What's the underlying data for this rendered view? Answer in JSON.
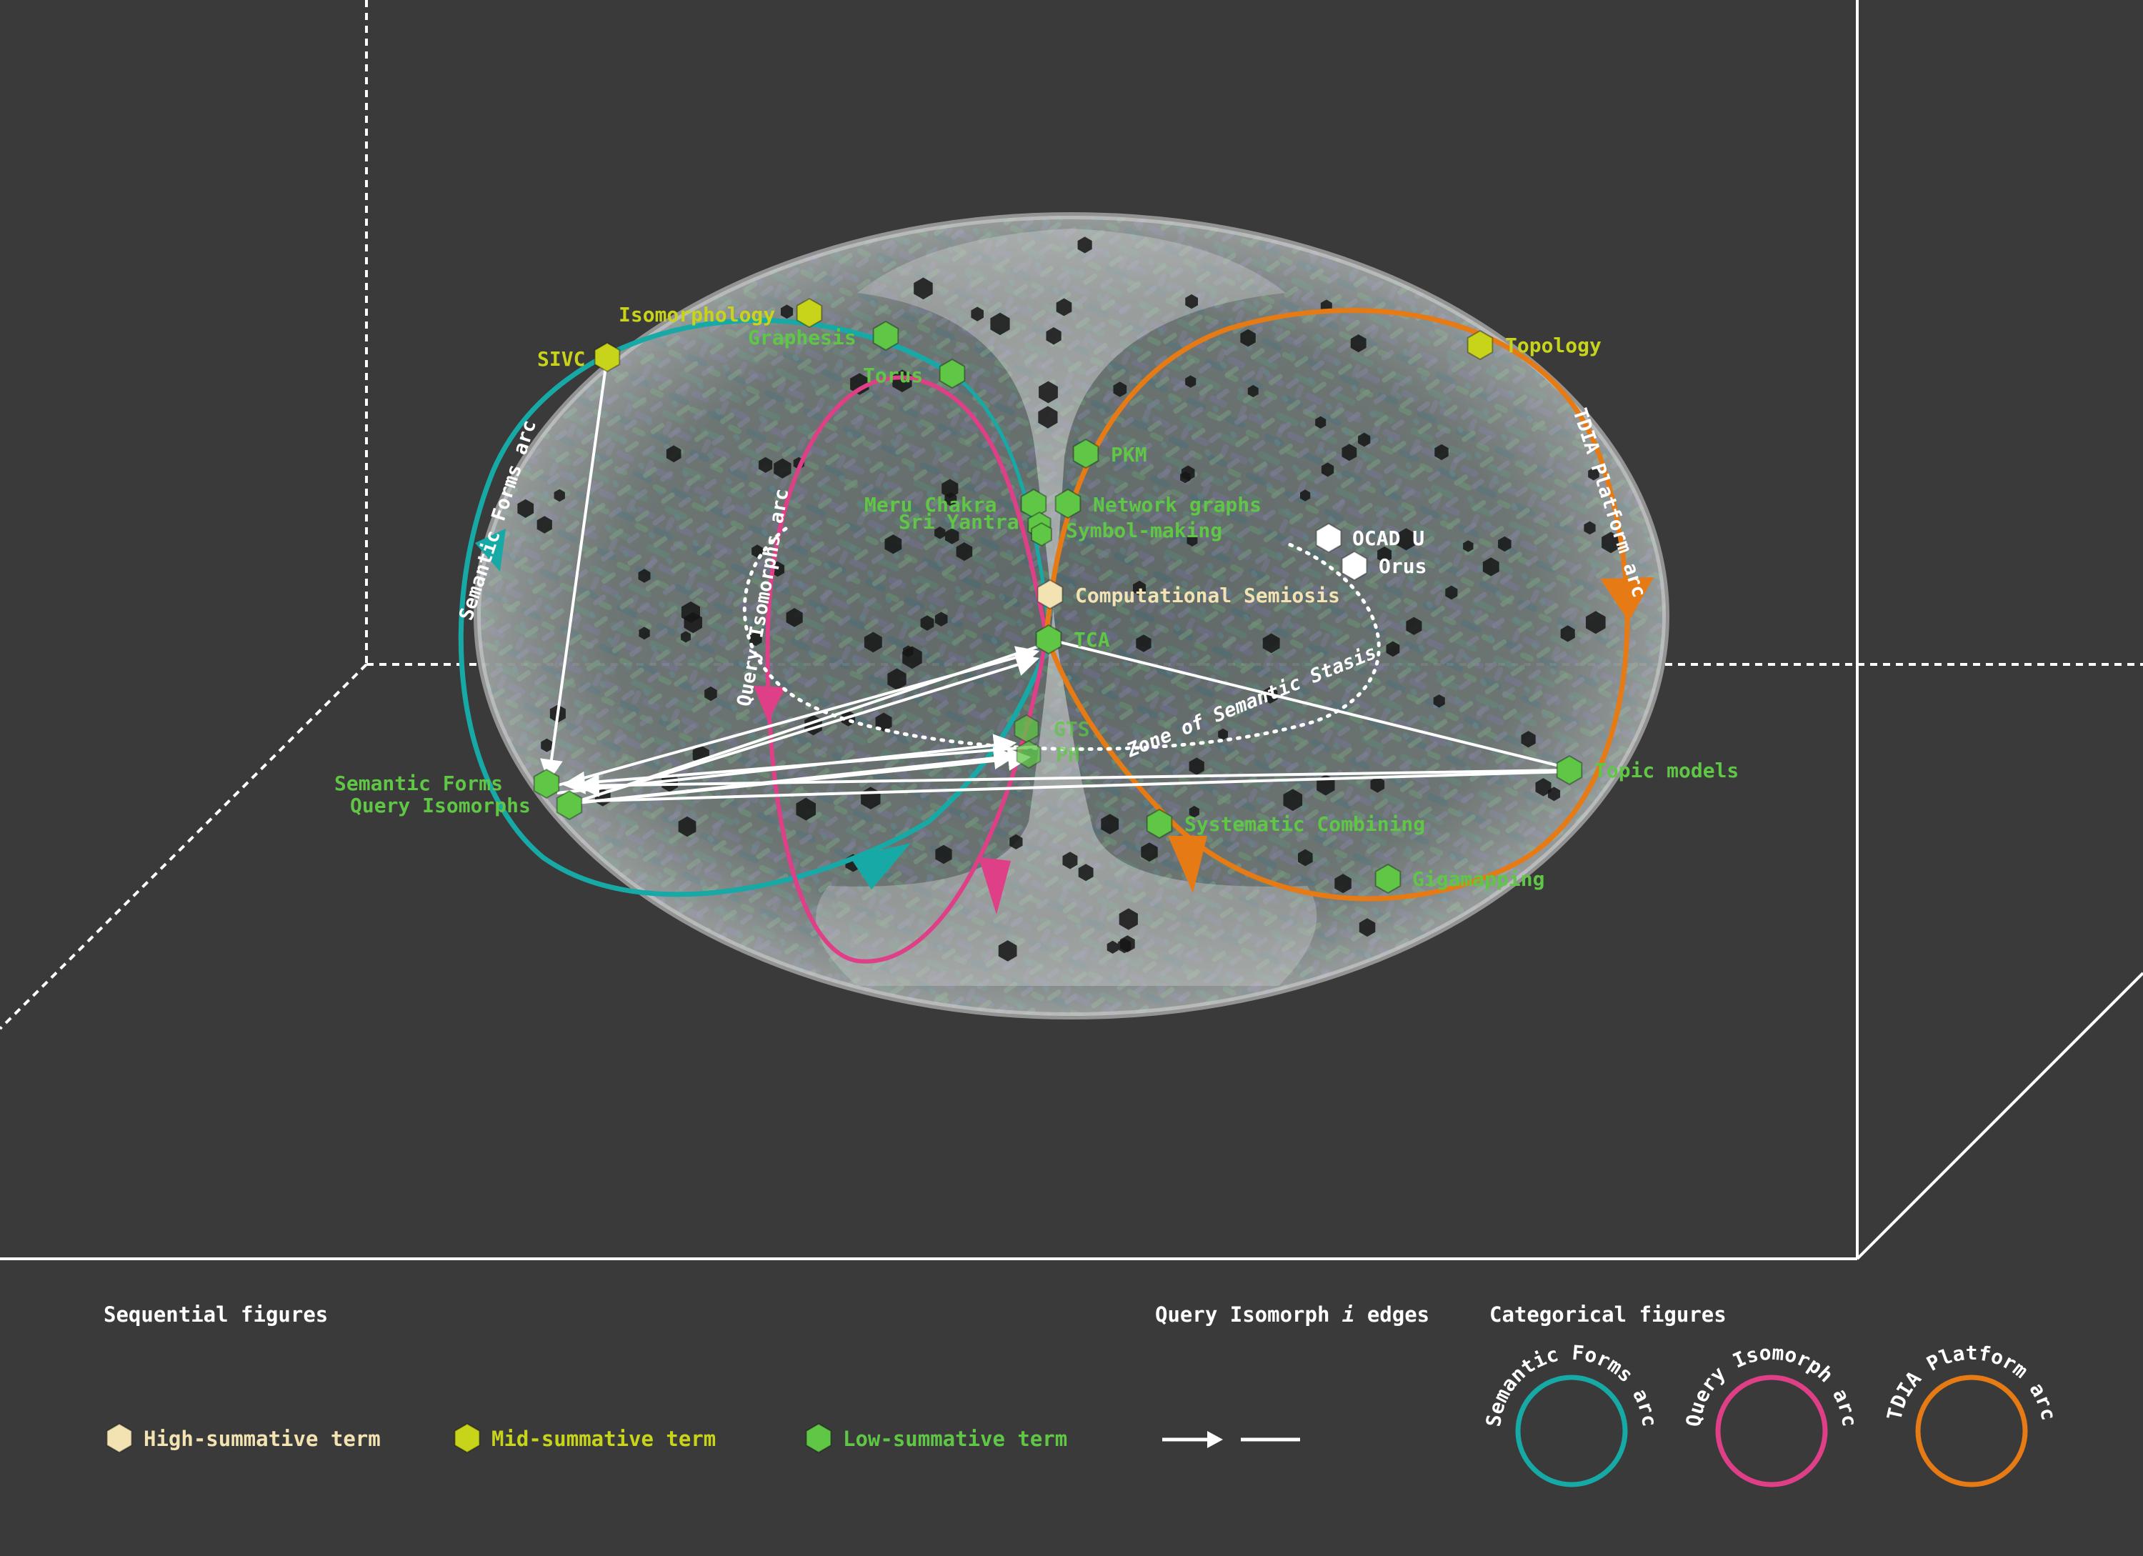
{
  "colors": {
    "background": "#3a3a3a",
    "high": "#f3e3b3",
    "mid": "#c8d41a",
    "low": "#5fc646",
    "white_node": "#ffffff",
    "semantic_forms_arc": "#16a9a6",
    "query_isomorphs_arc": "#df3f86",
    "tdia_platform_arc": "#e67a14"
  },
  "arc_labels": {
    "semantic_forms": "Semantic Forms arc",
    "query_isomorphs": "Query Isomorphs arc",
    "tdia_platform": "TDIA Platform arc",
    "zone": "Zone of Semantic Stasis"
  },
  "nodes": [
    {
      "id": "isomorphology",
      "label": "Isomorphology",
      "level": "mid"
    },
    {
      "id": "graphesis",
      "label": "Graphesis",
      "level": "low"
    },
    {
      "id": "sivc",
      "label": "SIVC",
      "level": "mid"
    },
    {
      "id": "torus",
      "label": "Torus",
      "level": "low"
    },
    {
      "id": "topology",
      "label": "Topology",
      "level": "mid"
    },
    {
      "id": "pkm",
      "label": "PKM",
      "level": "low"
    },
    {
      "id": "meru",
      "label": "Meru Chakra",
      "level": "low"
    },
    {
      "id": "sri",
      "label": "Sri Yantra",
      "level": "low"
    },
    {
      "id": "network",
      "label": "Network graphs",
      "level": "low"
    },
    {
      "id": "symbol",
      "label": "Symbol-making",
      "level": "low"
    },
    {
      "id": "ocad",
      "label": "OCAD U",
      "level": "white"
    },
    {
      "id": "orus",
      "label": "Orus",
      "level": "white"
    },
    {
      "id": "semiosis",
      "label": "Computational Semiosis",
      "level": "high"
    },
    {
      "id": "tca",
      "label": "TCA",
      "level": "low"
    },
    {
      "id": "gts",
      "label": "GTS",
      "level": "low"
    },
    {
      "id": "ph",
      "label": "PH",
      "level": "low"
    },
    {
      "id": "semforms",
      "label": "Semantic Forms",
      "level": "low"
    },
    {
      "id": "queryiso",
      "label": "Query Isomorphs",
      "level": "low"
    },
    {
      "id": "topicmodels",
      "label": "Topic models",
      "level": "low"
    },
    {
      "id": "syscomb",
      "label": "Systematic Combining",
      "level": "low"
    },
    {
      "id": "gigamapping",
      "label": "Gigamapping",
      "level": "low"
    }
  ],
  "legend": {
    "sequential_title": "Sequential figures",
    "edges_title": "Query Isomorph i edges",
    "edges_prefix": "Query Isomorph ",
    "edges_italic": "i",
    "edges_suffix": " edges",
    "categorical_title": "Categorical figures",
    "high_label": "High-summative term",
    "mid_label": "Mid-summative term",
    "low_label": "Low-summative term",
    "cat_semantic": "Semantic Forms arc",
    "cat_query": "Query Isomorph arc",
    "cat_tdia": "TDIA Platform arc"
  }
}
